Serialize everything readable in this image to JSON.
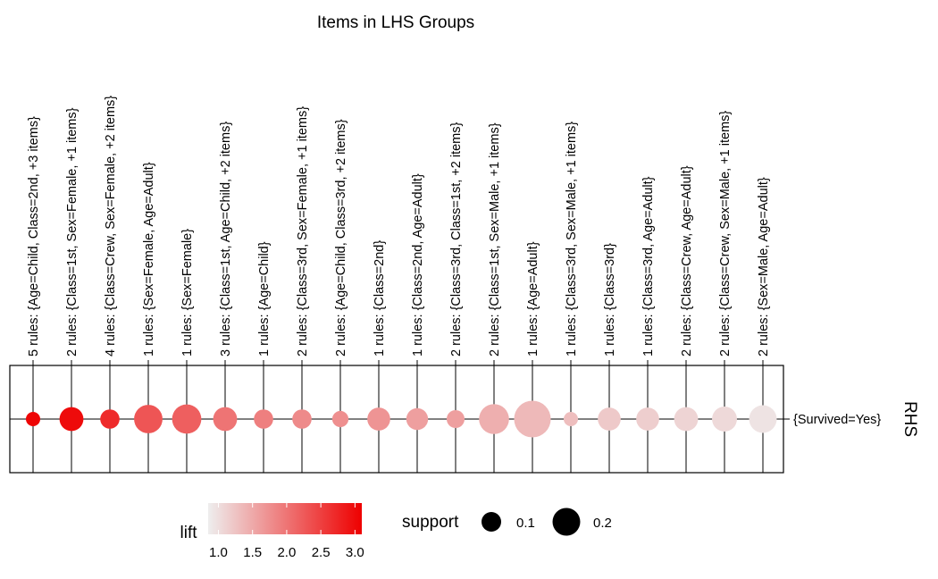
{
  "chart_data": {
    "type": "scatter",
    "title": "Items in LHS Groups",
    "x_axis_label": "",
    "y_axis_label": "RHS",
    "rhs": [
      "{Survived=Yes}"
    ],
    "lhs_groups": [
      {
        "label": "5 rules: {Age=Child, Class=2nd, +3 items}",
        "support": 0.02,
        "lift": 3.05
      },
      {
        "label": "2 rules: {Class=1st, Sex=Female, +1 items}",
        "support": 0.09,
        "lift": 3.0
      },
      {
        "label": "4 rules: {Class=Crew, Sex=Female, +2 items}",
        "support": 0.05,
        "lift": 2.7
      },
      {
        "label": "1 rules: {Sex=Female, Age=Adult}",
        "support": 0.14,
        "lift": 2.3
      },
      {
        "label": "1 rules: {Sex=Female}",
        "support": 0.15,
        "lift": 2.2
      },
      {
        "label": "3 rules: {Class=1st, Age=Child, +2 items}",
        "support": 0.09,
        "lift": 2.0
      },
      {
        "label": "1 rules: {Age=Child}",
        "support": 0.05,
        "lift": 1.9
      },
      {
        "label": "2 rules: {Class=3rd, Sex=Female, +1 items}",
        "support": 0.05,
        "lift": 1.8
      },
      {
        "label": "2 rules: {Age=Child, Class=3rd, +2 items}",
        "support": 0.03,
        "lift": 1.75
      },
      {
        "label": "1 rules: {Class=2nd}",
        "support": 0.08,
        "lift": 1.7
      },
      {
        "label": "1 rules: {Class=2nd, Age=Adult}",
        "support": 0.07,
        "lift": 1.6
      },
      {
        "label": "2 rules: {Class=3rd, Class=1st, +2 items}",
        "support": 0.04,
        "lift": 1.6
      },
      {
        "label": "2 rules: {Class=1st, Sex=Male, +1 items}",
        "support": 0.16,
        "lift": 1.45
      },
      {
        "label": "1 rules: {Age=Adult}",
        "support": 0.26,
        "lift": 1.35
      },
      {
        "label": "1 rules: {Class=3rd, Sex=Male, +1 items}",
        "support": 0.02,
        "lift": 1.3
      },
      {
        "label": "1 rules: {Class=3rd}",
        "support": 0.08,
        "lift": 1.2
      },
      {
        "label": "1 rules: {Class=3rd, Age=Adult}",
        "support": 0.08,
        "lift": 1.15
      },
      {
        "label": "2 rules: {Class=Crew, Age=Adult}",
        "support": 0.09,
        "lift": 1.1
      },
      {
        "label": "2 rules: {Class=Crew, Sex=Male, +1 items}",
        "support": 0.1,
        "lift": 1.05
      },
      {
        "label": "2 rules: {Sex=Male, Age=Adult}",
        "support": 0.13,
        "lift": 0.95
      }
    ],
    "legend_lift": {
      "title": "lift",
      "min": 0.85,
      "max": 3.1,
      "ticks": [
        1.0,
        1.5,
        2.0,
        2.5,
        3.0
      ],
      "tick_labels": [
        "1.0",
        "1.5",
        "2.0",
        "2.5",
        "3.0"
      ],
      "color_low": "#eeeeee",
      "color_high": "#ee0000"
    },
    "legend_support": {
      "title": "support",
      "values": [
        0.1,
        0.2
      ],
      "labels": [
        "0.1",
        "0.2"
      ]
    },
    "legend_placement": "bottom",
    "grid": true
  }
}
